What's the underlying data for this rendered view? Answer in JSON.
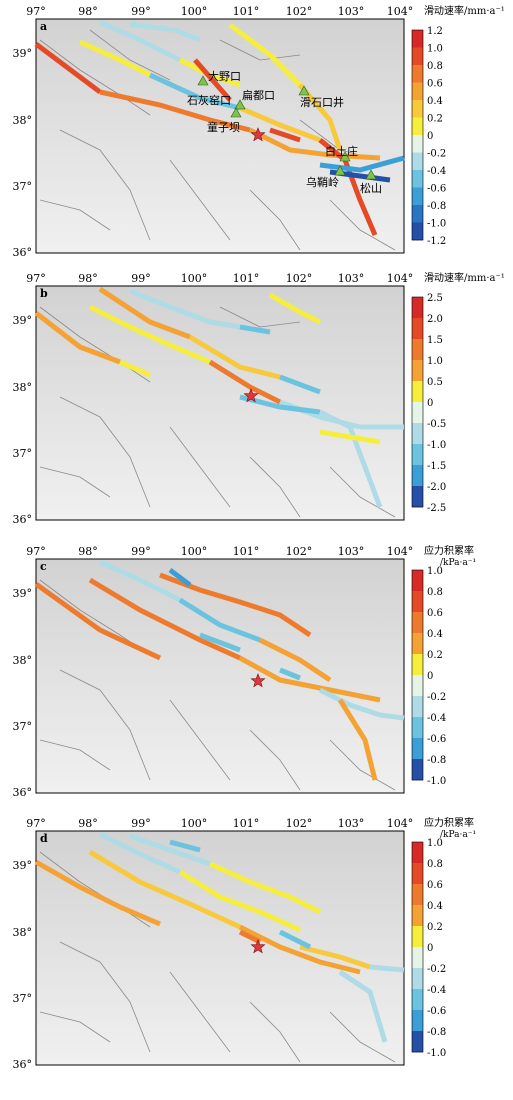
{
  "lon_ticks": [
    "97°",
    "98°",
    "99°",
    "100°",
    "101°",
    "102°",
    "103°",
    "104°"
  ],
  "lat_ticks": [
    "39°",
    "38°",
    "37°",
    "36°"
  ],
  "panels": [
    {
      "label": "a",
      "colorbar_title": "滑动速率/mm·a⁻¹",
      "colorbar_ticks": [
        "1.2",
        "1.0",
        "0.8",
        "0.6",
        "0.4",
        "0.2",
        "0",
        "-0.2",
        "-0.4",
        "-0.6",
        "-0.8",
        "-1.0",
        "-1.2"
      ],
      "colorbar_colors": [
        "#d62a28",
        "#e44a26",
        "#ee7a2e",
        "#f4a234",
        "#f8c93c",
        "#f6ee3e",
        "#e6f4e8",
        "#aedbe6",
        "#6bc3e0",
        "#3a9fd6",
        "#2a74c4",
        "#2650a8"
      ]
    },
    {
      "label": "b",
      "colorbar_title": "滑动速率/mm·a⁻¹",
      "colorbar_ticks": [
        "2.5",
        "2.0",
        "1.5",
        "1.0",
        "0.5",
        "0",
        "-0.5",
        "-1.0",
        "-1.5",
        "-2.0",
        "-2.5"
      ],
      "colorbar_colors": [
        "#d62a28",
        "#e44a26",
        "#ee7a2e",
        "#f4a234",
        "#f6ee3e",
        "#e6f4e8",
        "#aedbe6",
        "#6bc3e0",
        "#3a9fd6",
        "#2650a8"
      ]
    },
    {
      "label": "c",
      "colorbar_title": "应力积累率",
      "colorbar_unit": "/kPa·a⁻¹",
      "colorbar_ticks": [
        "1.0",
        "0.8",
        "0.6",
        "0.4",
        "0.2",
        "0",
        "-0.2",
        "-0.4",
        "-0.6",
        "-0.8",
        "-1.0"
      ],
      "colorbar_colors": [
        "#d62a28",
        "#e44a26",
        "#ee7a2e",
        "#f4a234",
        "#f6ee3e",
        "#e6f4e8",
        "#aedbe6",
        "#6bc3e0",
        "#3a9fd6",
        "#2650a8"
      ]
    },
    {
      "label": "d",
      "colorbar_title": "应力积累率",
      "colorbar_unit": "/kPa·a⁻¹",
      "colorbar_ticks": [
        "1.0",
        "0.8",
        "0.6",
        "0.4",
        "0.2",
        "0",
        "-0.2",
        "-0.4",
        "-0.6",
        "-0.8",
        "-1.0"
      ],
      "colorbar_colors": [
        "#d62a28",
        "#e44a26",
        "#ee7a2e",
        "#f4a234",
        "#f6ee3e",
        "#e6f4e8",
        "#aedbe6",
        "#6bc3e0",
        "#3a9fd6",
        "#2650a8"
      ]
    }
  ],
  "stations": [
    "大野口",
    "扁都口",
    "石灰窑口",
    "童子坝",
    "滑石口井",
    "白土庄",
    "乌鞘岭",
    "松山"
  ],
  "epicenter_marker": "red-star",
  "station_marker": "green-triangle",
  "colors": {
    "frame": "#000000",
    "fault": "#8a8a8a",
    "star": "#e2363a",
    "triangle": "#7fc24c"
  }
}
